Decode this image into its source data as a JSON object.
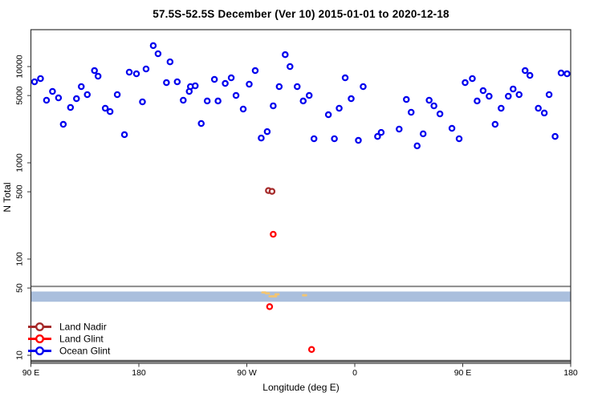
{
  "chart_data": {
    "type": "scatter",
    "title": "57.5S-52.5S December (Ver 10)   2015-01-01 to 2020-12-18",
    "xlabel": "Longitude (deg E)",
    "ylabel": "N Total",
    "x_axis": {
      "range_deg_e": [
        90,
        540
      ],
      "ticks": [
        {
          "lon": 90,
          "label": "90 E"
        },
        {
          "lon": 180,
          "label": "180"
        },
        {
          "lon": 270,
          "label": "90 W"
        },
        {
          "lon": 360,
          "label": "0"
        },
        {
          "lon": 450,
          "label": "90 E"
        },
        {
          "lon": 540,
          "label": "180"
        }
      ]
    },
    "y_axis": {
      "scale": "log",
      "range": [
        8.3,
        24000
      ],
      "ticks": [
        {
          "n": 10,
          "label": "10"
        },
        {
          "n": 50,
          "label": "50"
        },
        {
          "n": 100,
          "label": "100"
        },
        {
          "n": 500,
          "label": "500"
        },
        {
          "n": 1000,
          "label": "1000"
        },
        {
          "n": 5000,
          "label": "5000"
        },
        {
          "n": 10000,
          "label": "10000"
        }
      ]
    },
    "legend": {
      "position": "bottom-left",
      "items": [
        {
          "label": "Land Nadir",
          "color": "#A52A2A"
        },
        {
          "label": "Land Glint",
          "color": "#FF0000"
        },
        {
          "label": "Ocean Glint",
          "color": "#0000EE"
        }
      ]
    },
    "annotations": {
      "gray_line_n": 52,
      "band": {
        "n_min": 36,
        "n_max": 46,
        "color": "#AABFDD"
      },
      "bottom_dark_line_n": 8.7,
      "yellow_marks_color": "#F2C572",
      "yellow_marks": [
        [
          284,
          45
        ],
        [
          287,
          44
        ],
        [
          290,
          41
        ],
        [
          293,
          41
        ],
        [
          295,
          43
        ],
        [
          318,
          42
        ]
      ]
    },
    "series": [
      {
        "name": "Ocean Glint",
        "color": "#0000EE",
        "marker": "open-circle",
        "points": [
          [
            93,
            6950
          ],
          [
            98,
            7500
          ],
          [
            103,
            4470
          ],
          [
            108,
            5520
          ],
          [
            113,
            4730
          ],
          [
            117,
            2510
          ],
          [
            123,
            3760
          ],
          [
            128,
            4640
          ],
          [
            132,
            6190
          ],
          [
            137,
            5110
          ],
          [
            143,
            9080
          ],
          [
            146,
            7940
          ],
          [
            152,
            3690
          ],
          [
            156,
            3410
          ],
          [
            162,
            5110
          ],
          [
            168,
            1960
          ],
          [
            172,
            8750
          ],
          [
            178,
            8410
          ],
          [
            183,
            4300
          ],
          [
            186,
            9440
          ],
          [
            192,
            16500
          ],
          [
            196,
            13600
          ],
          [
            203,
            6810
          ],
          [
            206,
            11200
          ],
          [
            212,
            6950
          ],
          [
            217,
            4470
          ],
          [
            222,
            5520
          ],
          [
            223,
            6190
          ],
          [
            227,
            6310
          ],
          [
            232,
            2560
          ],
          [
            237,
            4390
          ],
          [
            243,
            7360
          ],
          [
            246,
            4390
          ],
          [
            252,
            6680
          ],
          [
            257,
            7640
          ],
          [
            261,
            5010
          ],
          [
            267,
            3620
          ],
          [
            272,
            6560
          ],
          [
            277,
            9080
          ],
          [
            282,
            1810
          ],
          [
            287,
            2110
          ],
          [
            292,
            3910
          ],
          [
            297,
            6190
          ],
          [
            302,
            13300
          ],
          [
            306,
            10000
          ],
          [
            312,
            6190
          ],
          [
            317,
            4390
          ],
          [
            322,
            5010
          ],
          [
            326,
            1780
          ],
          [
            338,
            3160
          ],
          [
            343,
            1780
          ],
          [
            347,
            3690
          ],
          [
            352,
            7640
          ],
          [
            357,
            4640
          ],
          [
            363,
            1710
          ],
          [
            367,
            6190
          ],
          [
            379,
            1880
          ],
          [
            382,
            2070
          ],
          [
            397,
            2240
          ],
          [
            403,
            4550
          ],
          [
            407,
            3350
          ],
          [
            412,
            1500
          ],
          [
            417,
            2000
          ],
          [
            422,
            4470
          ],
          [
            426,
            3910
          ],
          [
            431,
            3220
          ],
          [
            441,
            2280
          ],
          [
            447,
            1780
          ],
          [
            452,
            6810
          ],
          [
            458,
            7500
          ],
          [
            462,
            4390
          ],
          [
            467,
            5620
          ],
          [
            472,
            4920
          ],
          [
            477,
            2510
          ],
          [
            482,
            3690
          ],
          [
            488,
            4920
          ],
          [
            492,
            5850
          ],
          [
            497,
            5110
          ],
          [
            502,
            9080
          ],
          [
            506,
            8090
          ],
          [
            513,
            3690
          ],
          [
            518,
            3290
          ],
          [
            522,
            5110
          ],
          [
            527,
            1880
          ],
          [
            532,
            8570
          ],
          [
            537,
            8410
          ]
        ]
      },
      {
        "name": "Land Nadir",
        "color": "#A52A2A",
        "marker": "open-circle",
        "points": [
          [
            288,
            515
          ],
          [
            291,
            505
          ]
        ]
      },
      {
        "name": "Land Glint",
        "color": "#FF0000",
        "marker": "open-circle",
        "points": [
          [
            292,
            181
          ],
          [
            289,
            32
          ],
          [
            324,
            11.5
          ]
        ]
      }
    ]
  }
}
